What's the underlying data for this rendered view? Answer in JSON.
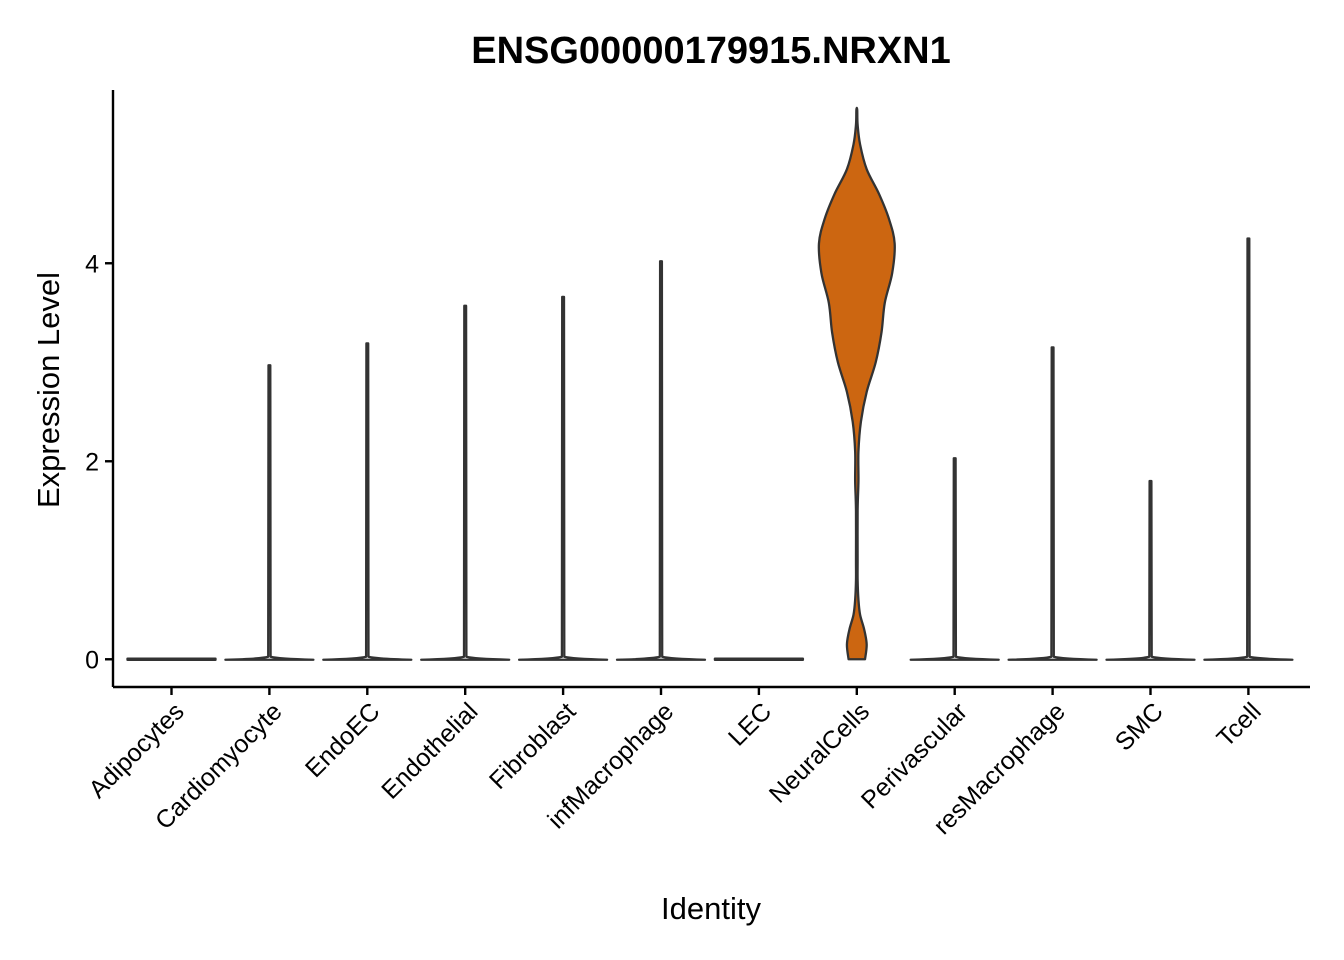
{
  "chart_data": {
    "type": "violin",
    "title": "ENSG00000179915.NRXN1",
    "xlabel": "Identity",
    "ylabel": "Expression Level",
    "ylim": [
      -0.28,
      5.75
    ],
    "yticks": [
      "0",
      "2",
      "4"
    ],
    "ytick_values": [
      0,
      2,
      4
    ],
    "grid": false,
    "legend": "none",
    "categories": [
      "Adipocytes",
      "Cardiomyocyte",
      "EndoEC",
      "Endothelial",
      "Fibroblast",
      "infMacrophage",
      "LEC",
      "NeuralCells",
      "Perivascular",
      "resMacrophage",
      "SMC",
      "Tcell"
    ],
    "series": [
      {
        "category": "Adipocytes",
        "max": 0.0,
        "color": "#ffffff"
      },
      {
        "category": "Cardiomyocyte",
        "max": 2.97,
        "color": "#ffffff"
      },
      {
        "category": "EndoEC",
        "max": 3.19,
        "color": "#ffffff"
      },
      {
        "category": "Endothelial",
        "max": 3.57,
        "color": "#ffffff"
      },
      {
        "category": "Fibroblast",
        "max": 3.66,
        "color": "#ffffff"
      },
      {
        "category": "infMacrophage",
        "max": 4.02,
        "color": "#ffffff"
      },
      {
        "category": "LEC",
        "max": 0.0,
        "color": "#ffffff"
      },
      {
        "category": "NeuralCells",
        "max": 5.55,
        "color": "#CC6611",
        "density": [
          [
            0.0,
            0.1
          ],
          [
            0.15,
            0.12
          ],
          [
            0.3,
            0.09
          ],
          [
            0.45,
            0.04
          ],
          [
            0.6,
            0.02
          ],
          [
            0.8,
            0.01
          ],
          [
            1.0,
            0.01
          ],
          [
            1.5,
            0.01
          ],
          [
            1.8,
            0.02
          ],
          [
            2.1,
            0.02
          ],
          [
            2.4,
            0.05
          ],
          [
            2.7,
            0.12
          ],
          [
            3.0,
            0.23
          ],
          [
            3.3,
            0.3
          ],
          [
            3.6,
            0.34
          ],
          [
            3.9,
            0.43
          ],
          [
            4.2,
            0.46
          ],
          [
            4.45,
            0.39
          ],
          [
            4.7,
            0.27
          ],
          [
            4.95,
            0.12
          ],
          [
            5.2,
            0.04
          ],
          [
            5.4,
            0.01
          ],
          [
            5.55,
            0.005
          ]
        ]
      },
      {
        "category": "Perivascular",
        "max": 2.03,
        "color": "#ffffff"
      },
      {
        "category": "resMacrophage",
        "max": 3.15,
        "color": "#ffffff"
      },
      {
        "category": "SMC",
        "max": 1.8,
        "color": "#ffffff"
      },
      {
        "category": "Tcell",
        "max": 4.25,
        "color": "#ffffff"
      }
    ]
  }
}
